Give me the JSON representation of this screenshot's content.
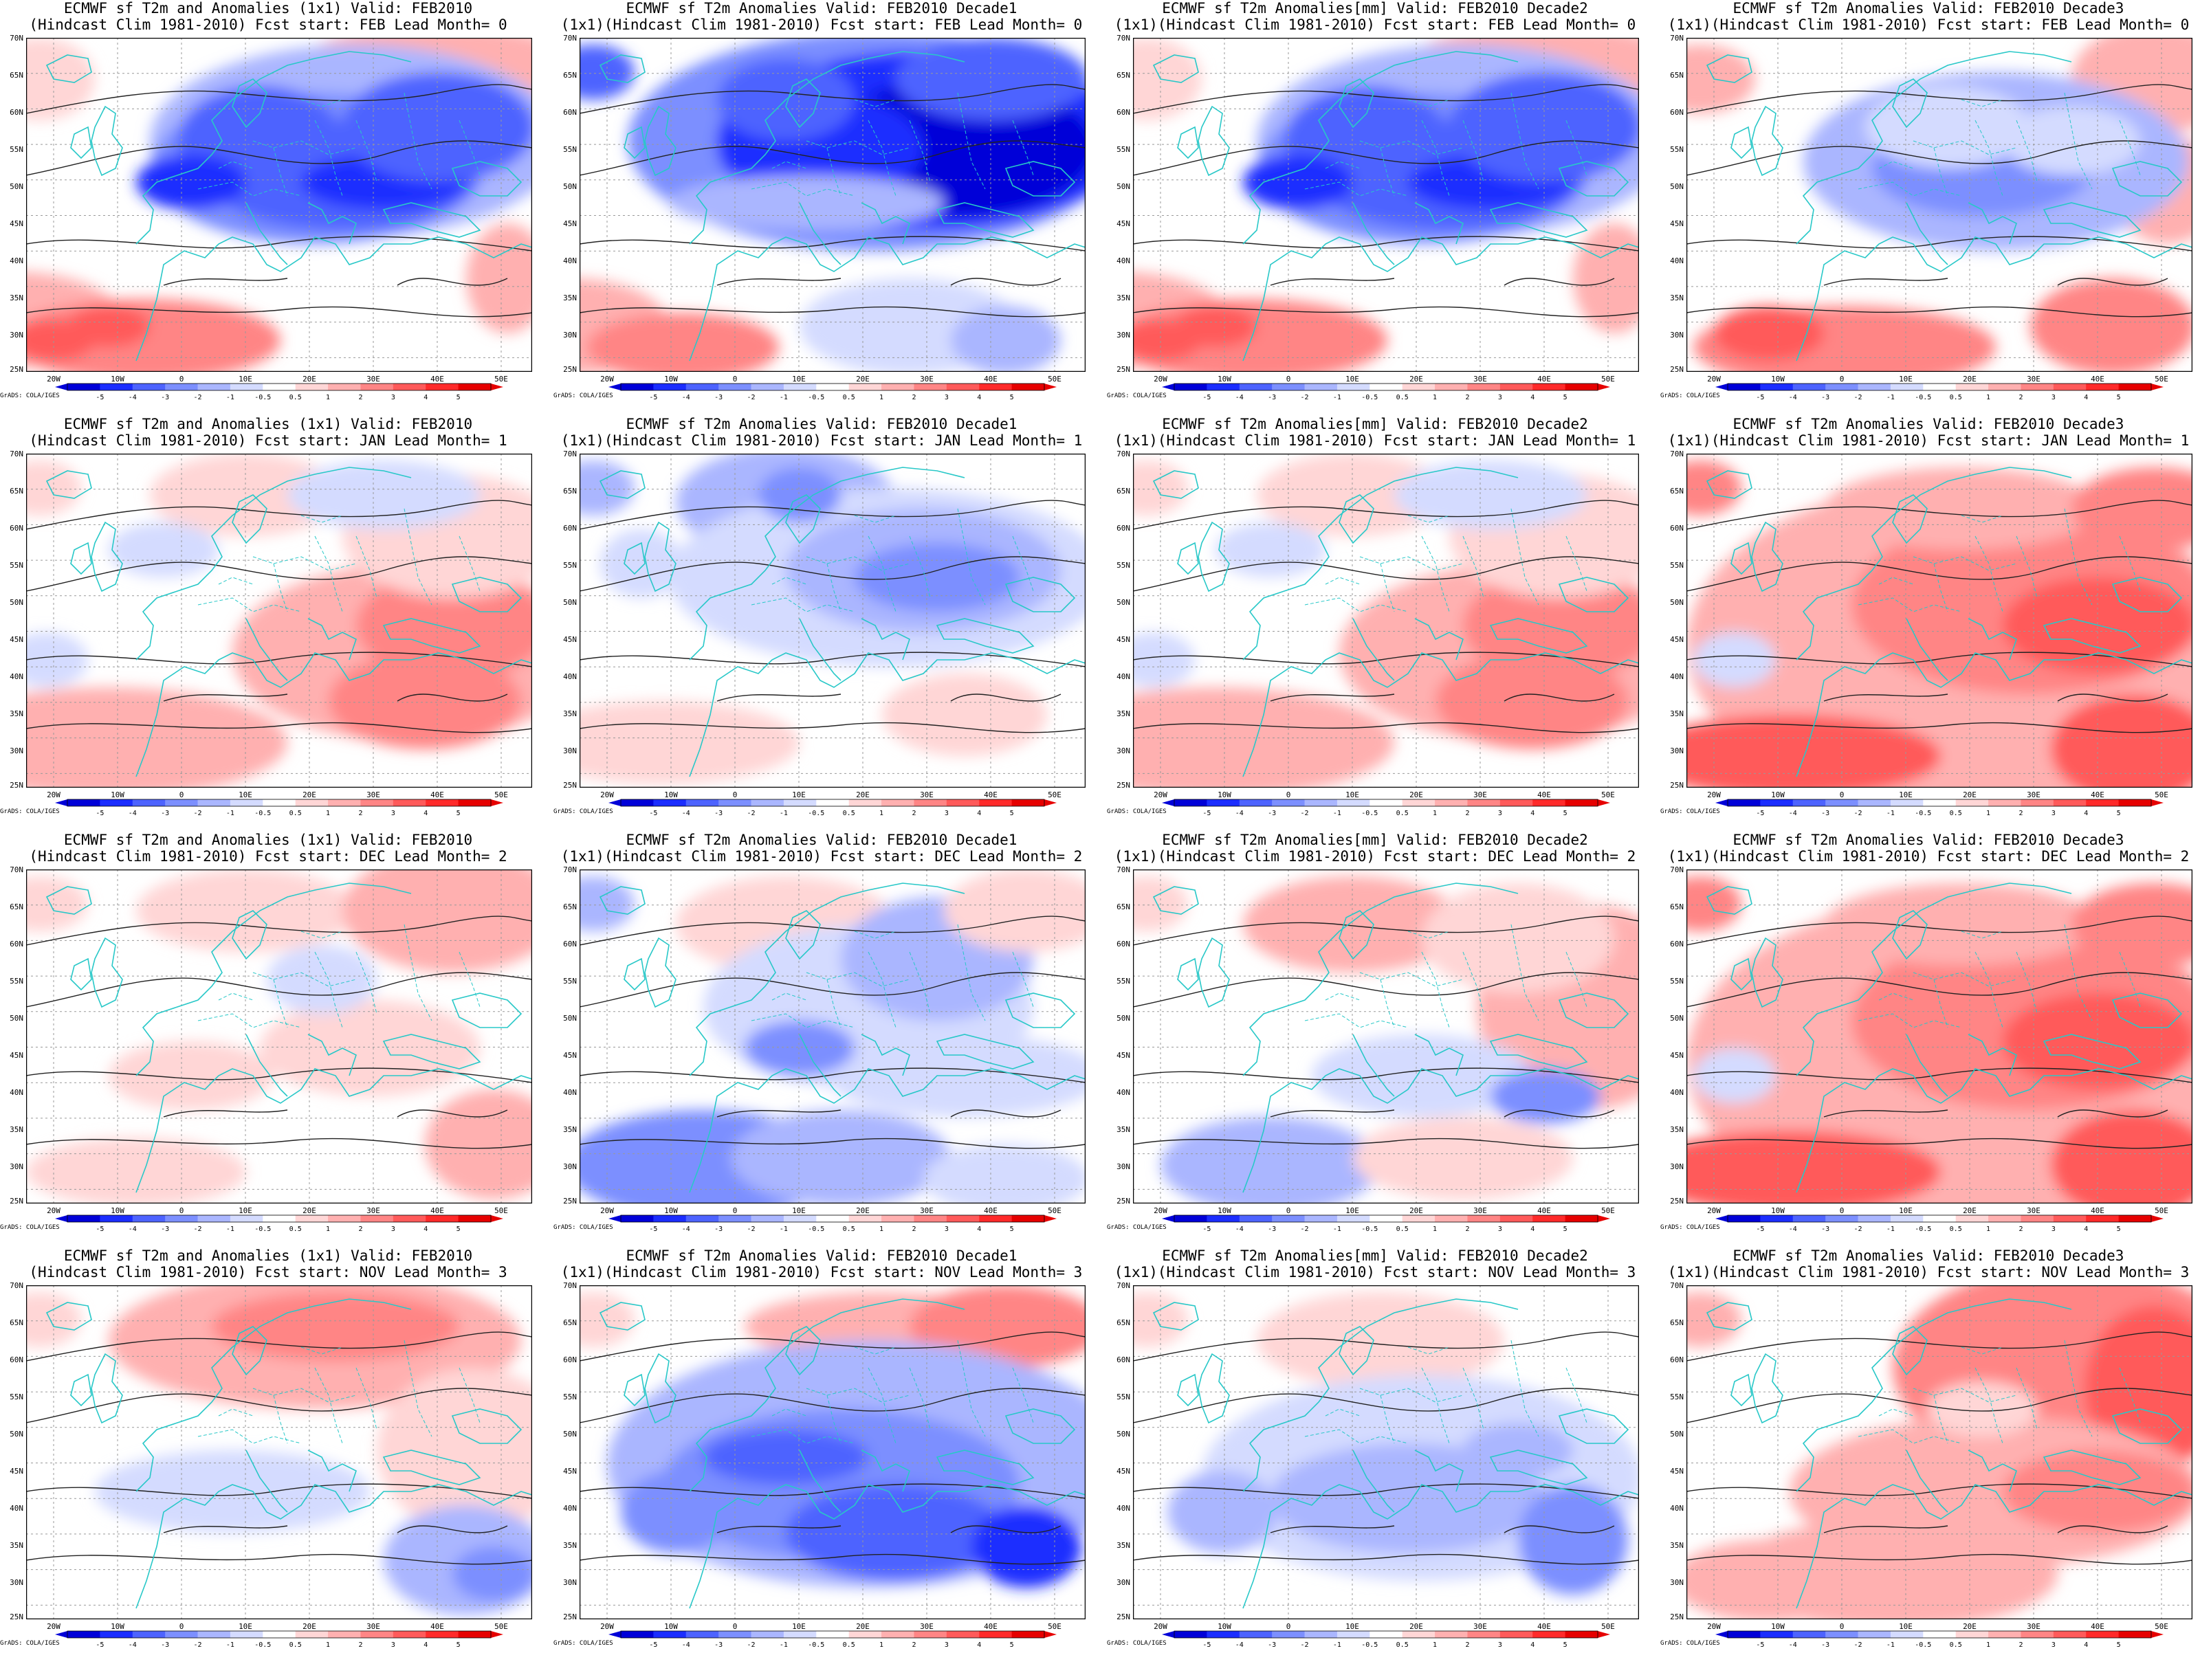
{
  "credit": "GrADS: COLA/IGES",
  "lat_labels": [
    "25N",
    "30N",
    "35N",
    "40N",
    "45N",
    "50N",
    "55N",
    "60N",
    "65N",
    "70N"
  ],
  "lon_labels": [
    "20W",
    "10W",
    "0",
    "10E",
    "20E",
    "30E",
    "40E",
    "50E"
  ],
  "colorbar_labels": [
    "-5",
    "-4",
    "-3",
    "-2",
    "-1",
    "-0.5",
    "0.5",
    "1",
    "2",
    "3",
    "4",
    "5"
  ],
  "colorbar_colors": [
    "#0000d8",
    "#1b2dff",
    "#4d63ff",
    "#7c8fff",
    "#aab6ff",
    "#d4dbff",
    "#ffffff",
    "#ffd6d6",
    "#ffb0b0",
    "#ff8585",
    "#ff5a5a",
    "#ff2a2a",
    "#e60000"
  ],
  "panels": [
    {
      "title1": "ECMWF sf T2m and Anomalies (1x1) Valid: FEB2010",
      "title2": "(Hindcast Clim 1981-2010) Fcst start: FEB  Lead Month= 0",
      "pattern": "cold_strong"
    },
    {
      "title1": "ECMWF sf T2m Anomalies Valid: FEB2010 Decade1",
      "title2": "(1x1)(Hindcast Clim 1981-2010) Fcst start: FEB  Lead Month= 0",
      "pattern": "cold_extreme"
    },
    {
      "title1": "ECMWF sf T2m Anomalies[mm] Valid: FEB2010 Decade2",
      "title2": "(1x1)(Hindcast Clim 1981-2010) Fcst start: FEB  Lead Month= 0",
      "pattern": "cold_strong"
    },
    {
      "title1": "ECMWF sf T2m Anomalies Valid: FEB2010 Decade3",
      "title2": "(1x1)(Hindcast Clim 1981-2010) Fcst start: FEB  Lead Month= 0",
      "pattern": "cold_moderate"
    },
    {
      "title1": "ECMWF sf T2m and Anomalies (1x1) Valid: FEB2010",
      "title2": "(Hindcast Clim 1981-2010) Fcst start: JAN  Lead Month= 1",
      "pattern": "warm_east"
    },
    {
      "title1": "ECMWF sf T2m Anomalies Valid: FEB2010 Decade1",
      "title2": "(1x1)(Hindcast Clim 1981-2010) Fcst start: JAN  Lead Month= 1",
      "pattern": "cold_north"
    },
    {
      "title1": "ECMWF sf T2m Anomalies[mm] Valid: FEB2010 Decade2",
      "title2": "(1x1)(Hindcast Clim 1981-2010) Fcst start: JAN  Lead Month= 1",
      "pattern": "warm_east"
    },
    {
      "title1": "ECMWF sf T2m Anomalies Valid: FEB2010 Decade3",
      "title2": "(1x1)(Hindcast Clim 1981-2010) Fcst start: JAN  Lead Month= 1",
      "pattern": "warm_strong"
    },
    {
      "title1": "ECMWF sf T2m and Anomalies (1x1) Valid: FEB2010",
      "title2": "(Hindcast Clim 1981-2010) Fcst start: DEC  Lead Month= 2",
      "pattern": "weak_warm"
    },
    {
      "title1": "ECMWF sf T2m Anomalies Valid: FEB2010 Decade1",
      "title2": "(1x1)(Hindcast Clim 1981-2010) Fcst start: DEC  Lead Month= 2",
      "pattern": "cold_south"
    },
    {
      "title1": "ECMWF sf T2m Anomalies[mm] Valid: FEB2010 Decade2",
      "title2": "(1x1)(Hindcast Clim 1981-2010) Fcst start: DEC  Lead Month= 2",
      "pattern": "mixed"
    },
    {
      "title1": "ECMWF sf T2m Anomalies Valid: FEB2010 Decade3",
      "title2": "(1x1)(Hindcast Clim 1981-2010) Fcst start: DEC  Lead Month= 2",
      "pattern": "warm_strong"
    },
    {
      "title1": "ECMWF sf T2m and Anomalies (1x1) Valid: FEB2010",
      "title2": "(Hindcast Clim 1981-2010) Fcst start: NOV  Lead Month= 3",
      "pattern": "warm_north"
    },
    {
      "title1": "ECMWF sf T2m Anomalies Valid: FEB2010 Decade1",
      "title2": "(1x1)(Hindcast Clim 1981-2010) Fcst start: NOV  Lead Month= 3",
      "pattern": "cold_central"
    },
    {
      "title1": "ECMWF sf T2m Anomalies[mm] Valid: FEB2010 Decade2",
      "title2": "(1x1)(Hindcast Clim 1981-2010) Fcst start: NOV  Lead Month= 3",
      "pattern": "cold_mod_central"
    },
    {
      "title1": "ECMWF sf T2m Anomalies Valid: FEB2010 Decade3",
      "title2": "(1x1)(Hindcast Clim 1981-2010) Fcst start: NOV  Lead Month= 3",
      "pattern": "warm_strong_ne"
    }
  ]
}
